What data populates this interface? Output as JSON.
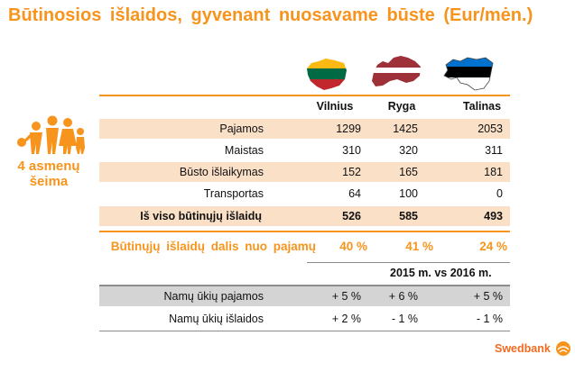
{
  "title": "Būtinosios išlaidos, gyvenant nuosavame būste (Eur/mėn.)",
  "family": {
    "label_line1": "4 asmenų",
    "label_line2": "šeima",
    "icon": "family-icon"
  },
  "flags": [
    {
      "country": "Lithuania",
      "icon": "lithuania-flag-icon",
      "colors": [
        "#fdb913",
        "#006a44",
        "#c1272d"
      ]
    },
    {
      "country": "Latvia",
      "icon": "latvia-flag-icon",
      "colors": [
        "#9e3039",
        "#ffffff",
        "#9e3039"
      ]
    },
    {
      "country": "Estonia",
      "icon": "estonia-flag-icon",
      "colors": [
        "#0072ce",
        "#000000",
        "#ffffff"
      ]
    }
  ],
  "table": {
    "columns": [
      "Vilnius",
      "Ryga",
      "Talinas"
    ],
    "rows": [
      {
        "label": "Pajamos",
        "values": [
          "1299",
          "1425",
          "2053"
        ]
      },
      {
        "label": "Maistas",
        "values": [
          "310",
          "320",
          "311"
        ]
      },
      {
        "label": "Būsto išlaikymas",
        "values": [
          "152",
          "165",
          "181"
        ]
      },
      {
        "label": "Transportas",
        "values": [
          "64",
          "100",
          "0"
        ]
      }
    ],
    "total": {
      "label": "Iš viso būtinųjų išlaidų",
      "values": [
        "526",
        "585",
        "493"
      ]
    },
    "share": {
      "label": "Būtinųjų išlaidų dalis nuo pajamų",
      "values": [
        "40 %",
        "41 %",
        "24 %"
      ]
    }
  },
  "comparison": {
    "header": "2015 m. vs 2016 m.",
    "rows": [
      {
        "label": "Namų ūkių pajamos",
        "values": [
          "+ 5 %",
          "+ 6 %",
          "+ 5 %"
        ]
      },
      {
        "label": "Namų ūkių išlaidos",
        "values": [
          "+ 2 %",
          "- 1 %",
          "- 1 %"
        ]
      }
    ]
  },
  "brand": {
    "name": "Swedbank",
    "icon": "swedbank-logo-icon",
    "color": "#f26a21"
  },
  "colors": {
    "accent": "#f7941d",
    "row_shade": "#fbe0c8",
    "row_grey": "#d4d4d4"
  }
}
